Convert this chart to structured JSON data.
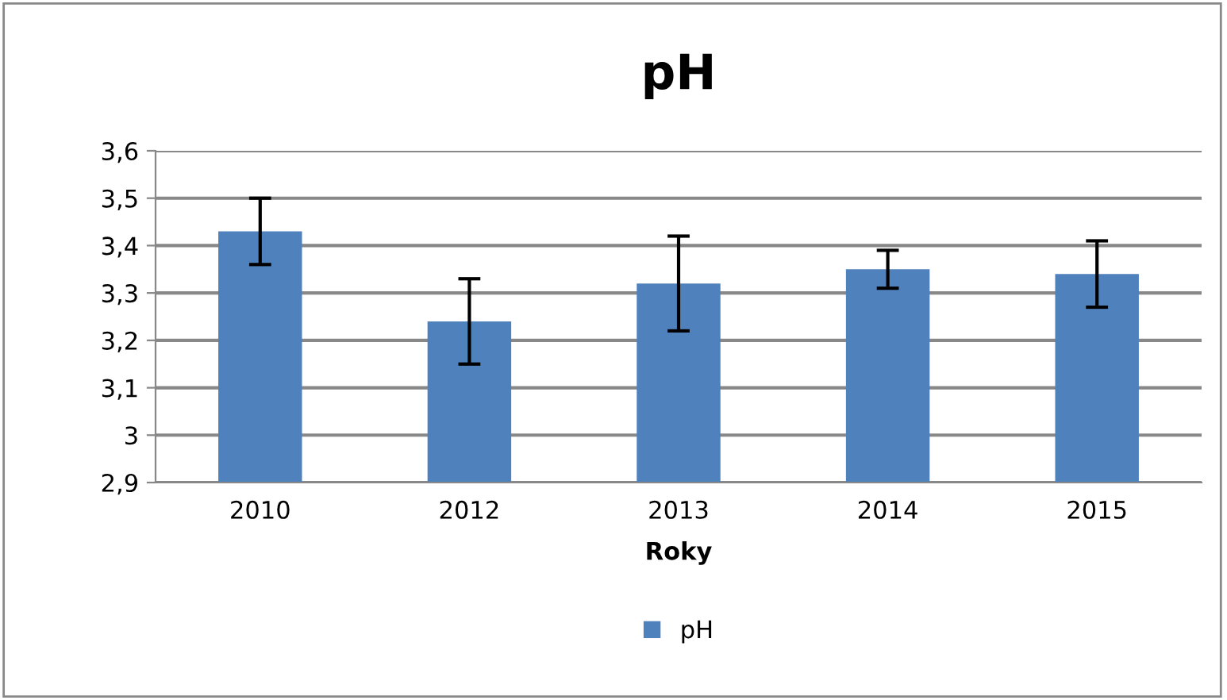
{
  "chart_data": {
    "type": "bar",
    "title": "pH",
    "xlabel": "Roky",
    "categories": [
      "2010",
      "2012",
      "2013",
      "2014",
      "2015"
    ],
    "series": [
      {
        "name": "pH",
        "color": "#4f81bd",
        "values": [
          3.43,
          3.24,
          3.32,
          3.35,
          3.34
        ],
        "errors": [
          0.07,
          0.09,
          0.1,
          0.04,
          0.07
        ]
      }
    ],
    "ylim": [
      2.9,
      3.6
    ],
    "yticks": [
      {
        "value": 2.9,
        "label": "2,9"
      },
      {
        "value": 3.0,
        "label": "3"
      },
      {
        "value": 3.1,
        "label": "3,1"
      },
      {
        "value": 3.2,
        "label": "3,2"
      },
      {
        "value": 3.3,
        "label": "3,3"
      },
      {
        "value": 3.4,
        "label": "3,4"
      },
      {
        "value": 3.5,
        "label": "3,5"
      },
      {
        "value": 3.6,
        "label": "3,6"
      }
    ],
    "grid": "y",
    "legend": "bottom"
  }
}
